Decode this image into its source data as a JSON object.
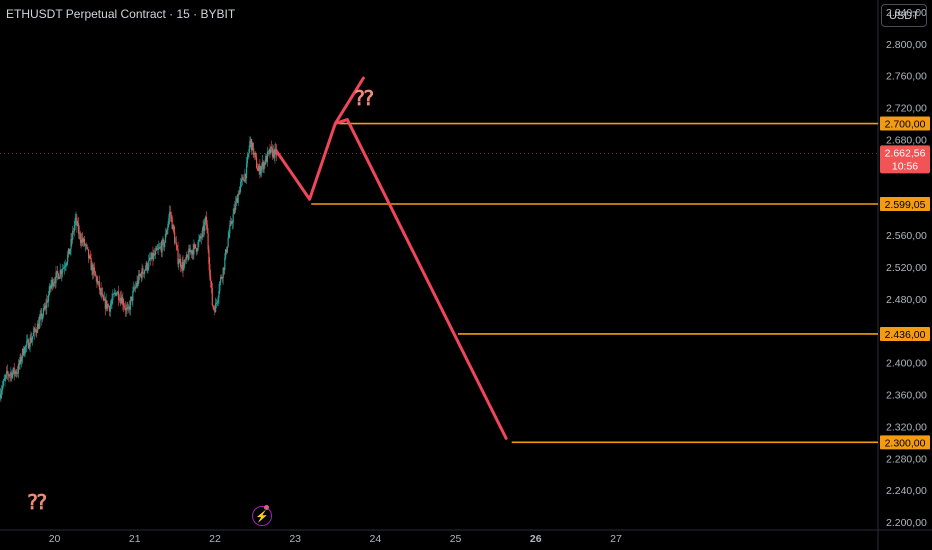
{
  "header": {
    "title": "ETHUSDT Perpetual Contract · 15 · BYBIT"
  },
  "toolbar": {
    "currency": "USDT"
  },
  "annotations": {
    "question_top": "⁇",
    "question_bottom": "⁇"
  },
  "colors": {
    "level": "#f39c12",
    "path": "#f0465a",
    "up": "#26a69a",
    "down": "#ef5350",
    "price_tag": "#f05454"
  },
  "chart_data": {
    "type": "candlestick",
    "y_ticks": [
      "2.840,00",
      "2.800,00",
      "2.760,00",
      "2.720,00",
      "2.680,00",
      "2.560,00",
      "2.520,00",
      "2.480,00",
      "2.400,00",
      "2.360,00",
      "2.320,00",
      "2.280,00",
      "2.240,00",
      "2.200,00"
    ],
    "y_tick_values": [
      2840,
      2800,
      2760,
      2720,
      2680,
      2560,
      2520,
      2480,
      2400,
      2360,
      2320,
      2280,
      2240,
      2200
    ],
    "ylim": [
      2190,
      2855
    ],
    "x_ticks": [
      "20",
      "21",
      "22",
      "23",
      "24",
      "25",
      "26",
      "27"
    ],
    "x_tick_values": [
      20,
      21,
      22,
      23,
      24,
      25,
      26,
      27
    ],
    "xlim": [
      19.32,
      30.94
    ],
    "levels": [
      {
        "label": "2.700,00",
        "value": 2700,
        "x_start": 23.55
      },
      {
        "label": "2.599,05",
        "value": 2599.05,
        "x_start": 23.2
      },
      {
        "label": "2.436,00",
        "value": 2436,
        "x_start": 25.03
      },
      {
        "label": "2.300,00",
        "value": 2300,
        "x_start": 25.7
      }
    ],
    "current_price": {
      "label": "2.662,56",
      "countdown": "10:56",
      "value": 2662.56
    },
    "projection": [
      [
        22.77,
        2665
      ],
      [
        23.18,
        2605
      ],
      [
        23.5,
        2700
      ],
      [
        23.65,
        2705
      ],
      [
        25.63,
        2305
      ]
    ],
    "projection_branch": [
      [
        23.5,
        2700
      ],
      [
        23.85,
        2757
      ]
    ],
    "price_path": [
      [
        19.32,
        2360
      ],
      [
        19.42,
        2385
      ],
      [
        19.55,
        2390
      ],
      [
        19.62,
        2415
      ],
      [
        19.72,
        2430
      ],
      [
        19.82,
        2450
      ],
      [
        19.9,
        2470
      ],
      [
        19.97,
        2500
      ],
      [
        20.05,
        2510
      ],
      [
        20.12,
        2520
      ],
      [
        20.2,
        2540
      ],
      [
        20.27,
        2580
      ],
      [
        20.32,
        2560
      ],
      [
        20.4,
        2545
      ],
      [
        20.47,
        2520
      ],
      [
        20.55,
        2500
      ],
      [
        20.62,
        2475
      ],
      [
        20.7,
        2470
      ],
      [
        20.78,
        2490
      ],
      [
        20.85,
        2480
      ],
      [
        20.92,
        2462
      ],
      [
        21.0,
        2490
      ],
      [
        21.08,
        2510
      ],
      [
        21.15,
        2520
      ],
      [
        21.22,
        2530
      ],
      [
        21.3,
        2540
      ],
      [
        21.38,
        2550
      ],
      [
        21.45,
        2590
      ],
      [
        21.5,
        2560
      ],
      [
        21.55,
        2530
      ],
      [
        21.62,
        2520
      ],
      [
        21.7,
        2540
      ],
      [
        21.78,
        2545
      ],
      [
        21.85,
        2560
      ],
      [
        21.9,
        2580
      ],
      [
        21.95,
        2510
      ],
      [
        21.98,
        2470
      ],
      [
        22.02,
        2470
      ],
      [
        22.07,
        2500
      ],
      [
        22.12,
        2520
      ],
      [
        22.18,
        2560
      ],
      [
        22.25,
        2590
      ],
      [
        22.32,
        2620
      ],
      [
        22.4,
        2640
      ],
      [
        22.45,
        2680
      ],
      [
        22.5,
        2660
      ],
      [
        22.55,
        2640
      ],
      [
        22.62,
        2650
      ],
      [
        22.7,
        2665
      ],
      [
        22.77,
        2662
      ]
    ]
  }
}
